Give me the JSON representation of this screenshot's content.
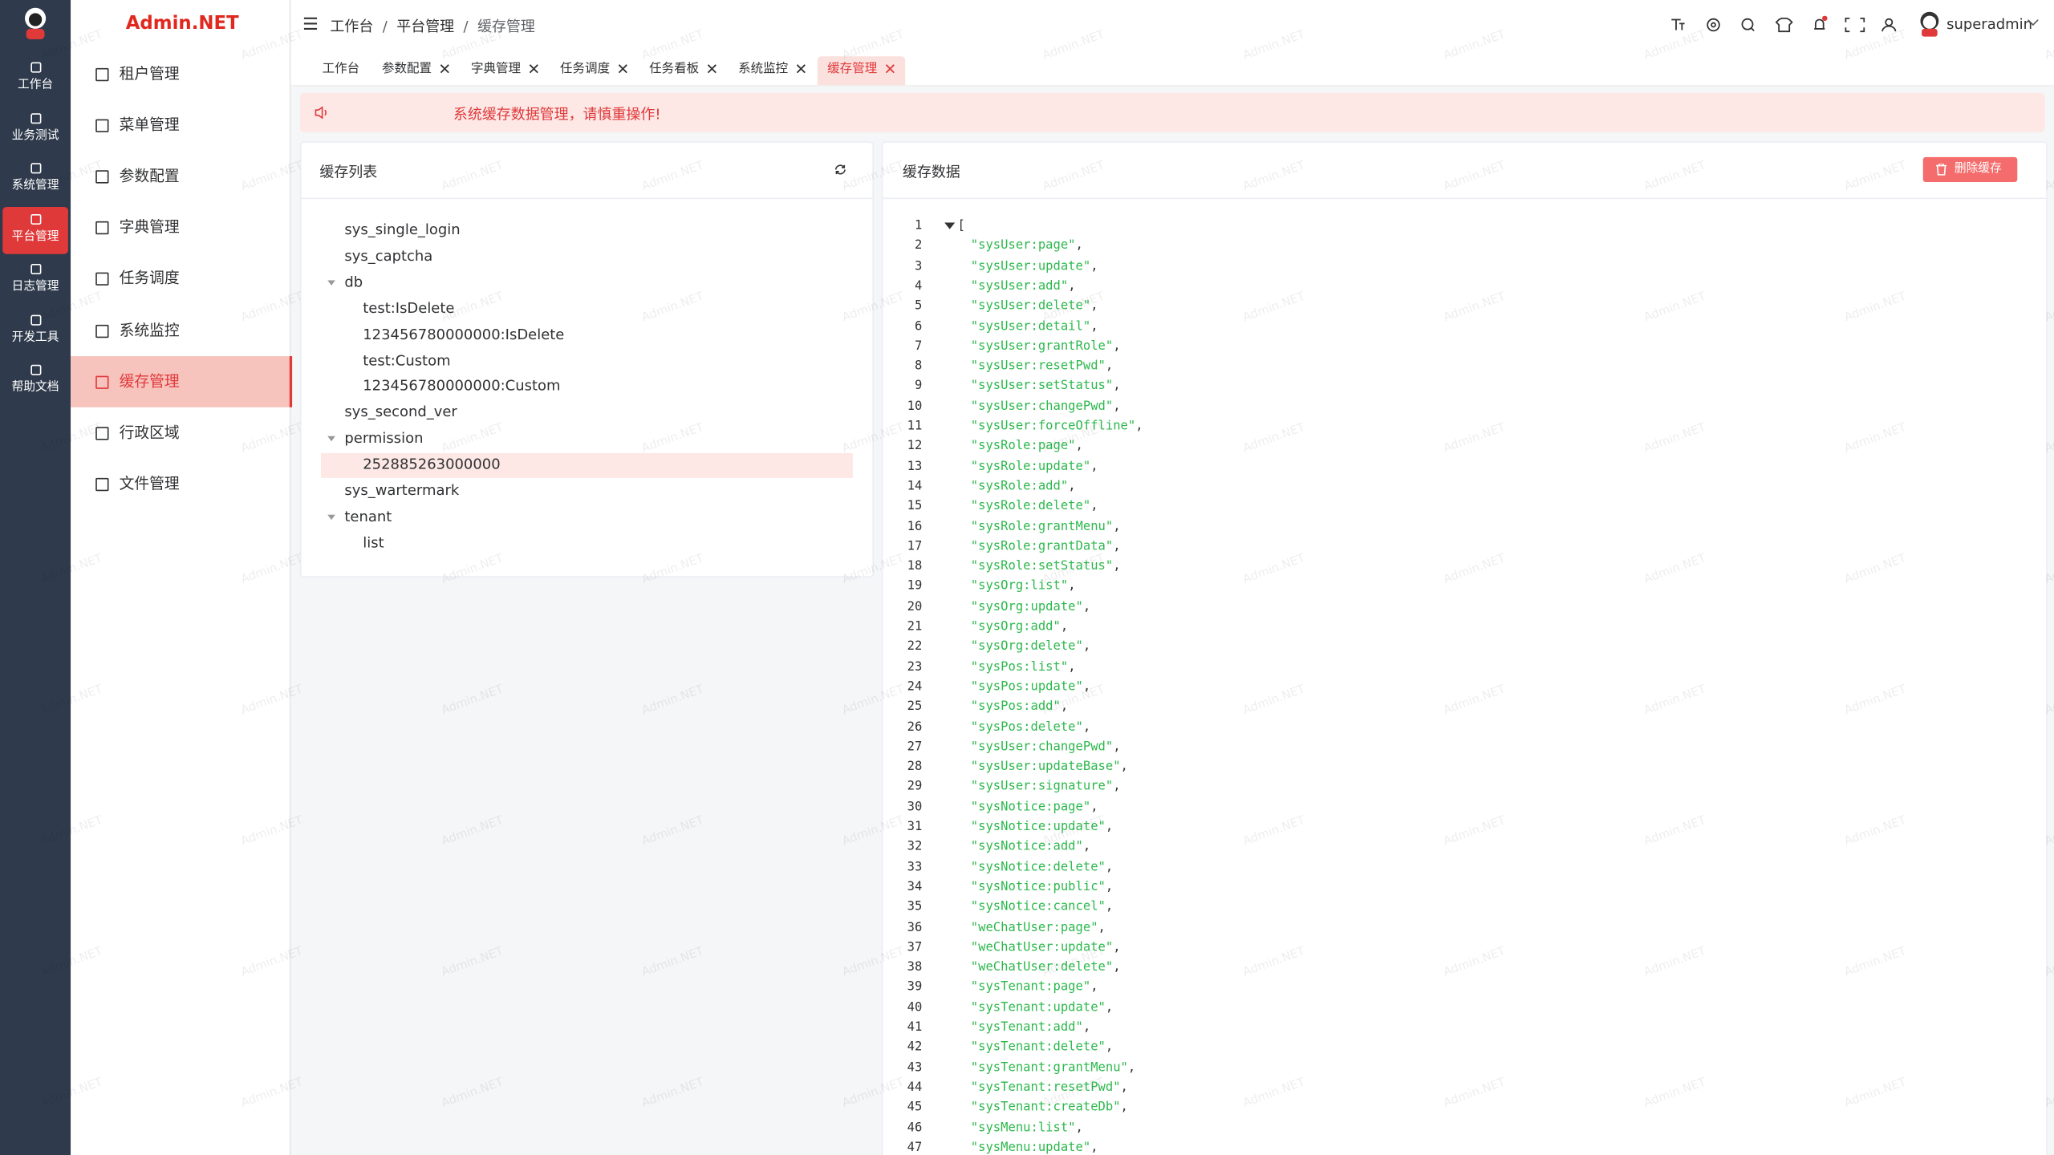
{
  "watermark": "Admin.NET",
  "rail": {
    "items": [
      "工作台",
      "业务测试",
      "系统管理",
      "平台管理",
      "日志管理",
      "开发工具",
      "帮助文档"
    ],
    "active": 3
  },
  "sidebar": {
    "logo": "Admin.NET",
    "items": [
      "租户管理",
      "菜单管理",
      "参数配置",
      "字典管理",
      "任务调度",
      "系统监控",
      "缓存管理",
      "行政区域",
      "文件管理"
    ],
    "active": 6
  },
  "header": {
    "breadcrumb": [
      "工作台",
      "平台管理",
      "缓存管理"
    ],
    "separator": "/",
    "user": "superadmin"
  },
  "tabs": {
    "items": [
      "工作台",
      "参数配置",
      "字典管理",
      "任务调度",
      "任务看板",
      "系统监控",
      "缓存管理"
    ],
    "active": 6
  },
  "notice": "系统缓存数据管理，请慎重操作!",
  "cache_list": {
    "title": "缓存列表",
    "tree": [
      {
        "label": "sys_single_login"
      },
      {
        "label": "sys_captcha"
      },
      {
        "label": "db",
        "children": [
          {
            "label": "test:IsDelete"
          },
          {
            "label": "123456780000000:IsDelete"
          },
          {
            "label": "test:Custom"
          },
          {
            "label": "123456780000000:Custom"
          }
        ]
      },
      {
        "label": "sys_second_ver"
      },
      {
        "label": "permission",
        "children": [
          {
            "label": "252885263000000",
            "selected": true
          }
        ]
      },
      {
        "label": "sys_wartermark"
      },
      {
        "label": "tenant",
        "children": [
          {
            "label": "list"
          }
        ]
      }
    ]
  },
  "cache_data": {
    "title": "缓存数据",
    "delete_button": "删除缓存",
    "lines": [
      {
        "n": 1,
        "p": "["
      },
      {
        "n": 2,
        "s": "\"sysUser:page\"",
        "p": ","
      },
      {
        "n": 3,
        "s": "\"sysUser:update\"",
        "p": ","
      },
      {
        "n": 4,
        "s": "\"sysUser:add\"",
        "p": ","
      },
      {
        "n": 5,
        "s": "\"sysUser:delete\"",
        "p": ","
      },
      {
        "n": 6,
        "s": "\"sysUser:detail\"",
        "p": ","
      },
      {
        "n": 7,
        "s": "\"sysUser:grantRole\"",
        "p": ","
      },
      {
        "n": 8,
        "s": "\"sysUser:resetPwd\"",
        "p": ","
      },
      {
        "n": 9,
        "s": "\"sysUser:setStatus\"",
        "p": ","
      },
      {
        "n": 10,
        "s": "\"sysUser:changePwd\"",
        "p": ","
      },
      {
        "n": 11,
        "s": "\"sysUser:forceOffline\"",
        "p": ","
      },
      {
        "n": 12,
        "s": "\"sysRole:page\"",
        "p": ","
      },
      {
        "n": 13,
        "s": "\"sysRole:update\"",
        "p": ","
      },
      {
        "n": 14,
        "s": "\"sysRole:add\"",
        "p": ","
      },
      {
        "n": 15,
        "s": "\"sysRole:delete\"",
        "p": ","
      },
      {
        "n": 16,
        "s": "\"sysRole:grantMenu\"",
        "p": ","
      },
      {
        "n": 17,
        "s": "\"sysRole:grantData\"",
        "p": ","
      },
      {
        "n": 18,
        "s": "\"sysRole:setStatus\"",
        "p": ","
      },
      {
        "n": 19,
        "s": "\"sysOrg:list\"",
        "p": ","
      },
      {
        "n": 20,
        "s": "\"sysOrg:update\"",
        "p": ","
      },
      {
        "n": 21,
        "s": "\"sysOrg:add\"",
        "p": ","
      },
      {
        "n": 22,
        "s": "\"sysOrg:delete\"",
        "p": ","
      },
      {
        "n": 23,
        "s": "\"sysPos:list\"",
        "p": ","
      },
      {
        "n": 24,
        "s": "\"sysPos:update\"",
        "p": ","
      },
      {
        "n": 25,
        "s": "\"sysPos:add\"",
        "p": ","
      },
      {
        "n": 26,
        "s": "\"sysPos:delete\"",
        "p": ","
      },
      {
        "n": 27,
        "s": "\"sysUser:changePwd\"",
        "p": ","
      },
      {
        "n": 28,
        "s": "\"sysUser:updateBase\"",
        "p": ","
      },
      {
        "n": 29,
        "s": "\"sysUser:signature\"",
        "p": ","
      },
      {
        "n": 30,
        "s": "\"sysNotice:page\"",
        "p": ","
      },
      {
        "n": 31,
        "s": "\"sysNotice:update\"",
        "p": ","
      },
      {
        "n": 32,
        "s": "\"sysNotice:add\"",
        "p": ","
      },
      {
        "n": 33,
        "s": "\"sysNotice:delete\"",
        "p": ","
      },
      {
        "n": 34,
        "s": "\"sysNotice:public\"",
        "p": ","
      },
      {
        "n": 35,
        "s": "\"sysNotice:cancel\"",
        "p": ","
      },
      {
        "n": 36,
        "s": "\"weChatUser:page\"",
        "p": ","
      },
      {
        "n": 37,
        "s": "\"weChatUser:update\"",
        "p": ","
      },
      {
        "n": 38,
        "s": "\"weChatUser:delete\"",
        "p": ","
      },
      {
        "n": 39,
        "s": "\"sysTenant:page\"",
        "p": ","
      },
      {
        "n": 40,
        "s": "\"sysTenant:update\"",
        "p": ","
      },
      {
        "n": 41,
        "s": "\"sysTenant:add\"",
        "p": ","
      },
      {
        "n": 42,
        "s": "\"sysTenant:delete\"",
        "p": ","
      },
      {
        "n": 43,
        "s": "\"sysTenant:grantMenu\"",
        "p": ","
      },
      {
        "n": 44,
        "s": "\"sysTenant:resetPwd\"",
        "p": ","
      },
      {
        "n": 45,
        "s": "\"sysTenant:createDb\"",
        "p": ","
      },
      {
        "n": 46,
        "s": "\"sysMenu:list\"",
        "p": ","
      },
      {
        "n": 47,
        "s": "\"sysMenu:update\"",
        "p": ","
      }
    ]
  }
}
